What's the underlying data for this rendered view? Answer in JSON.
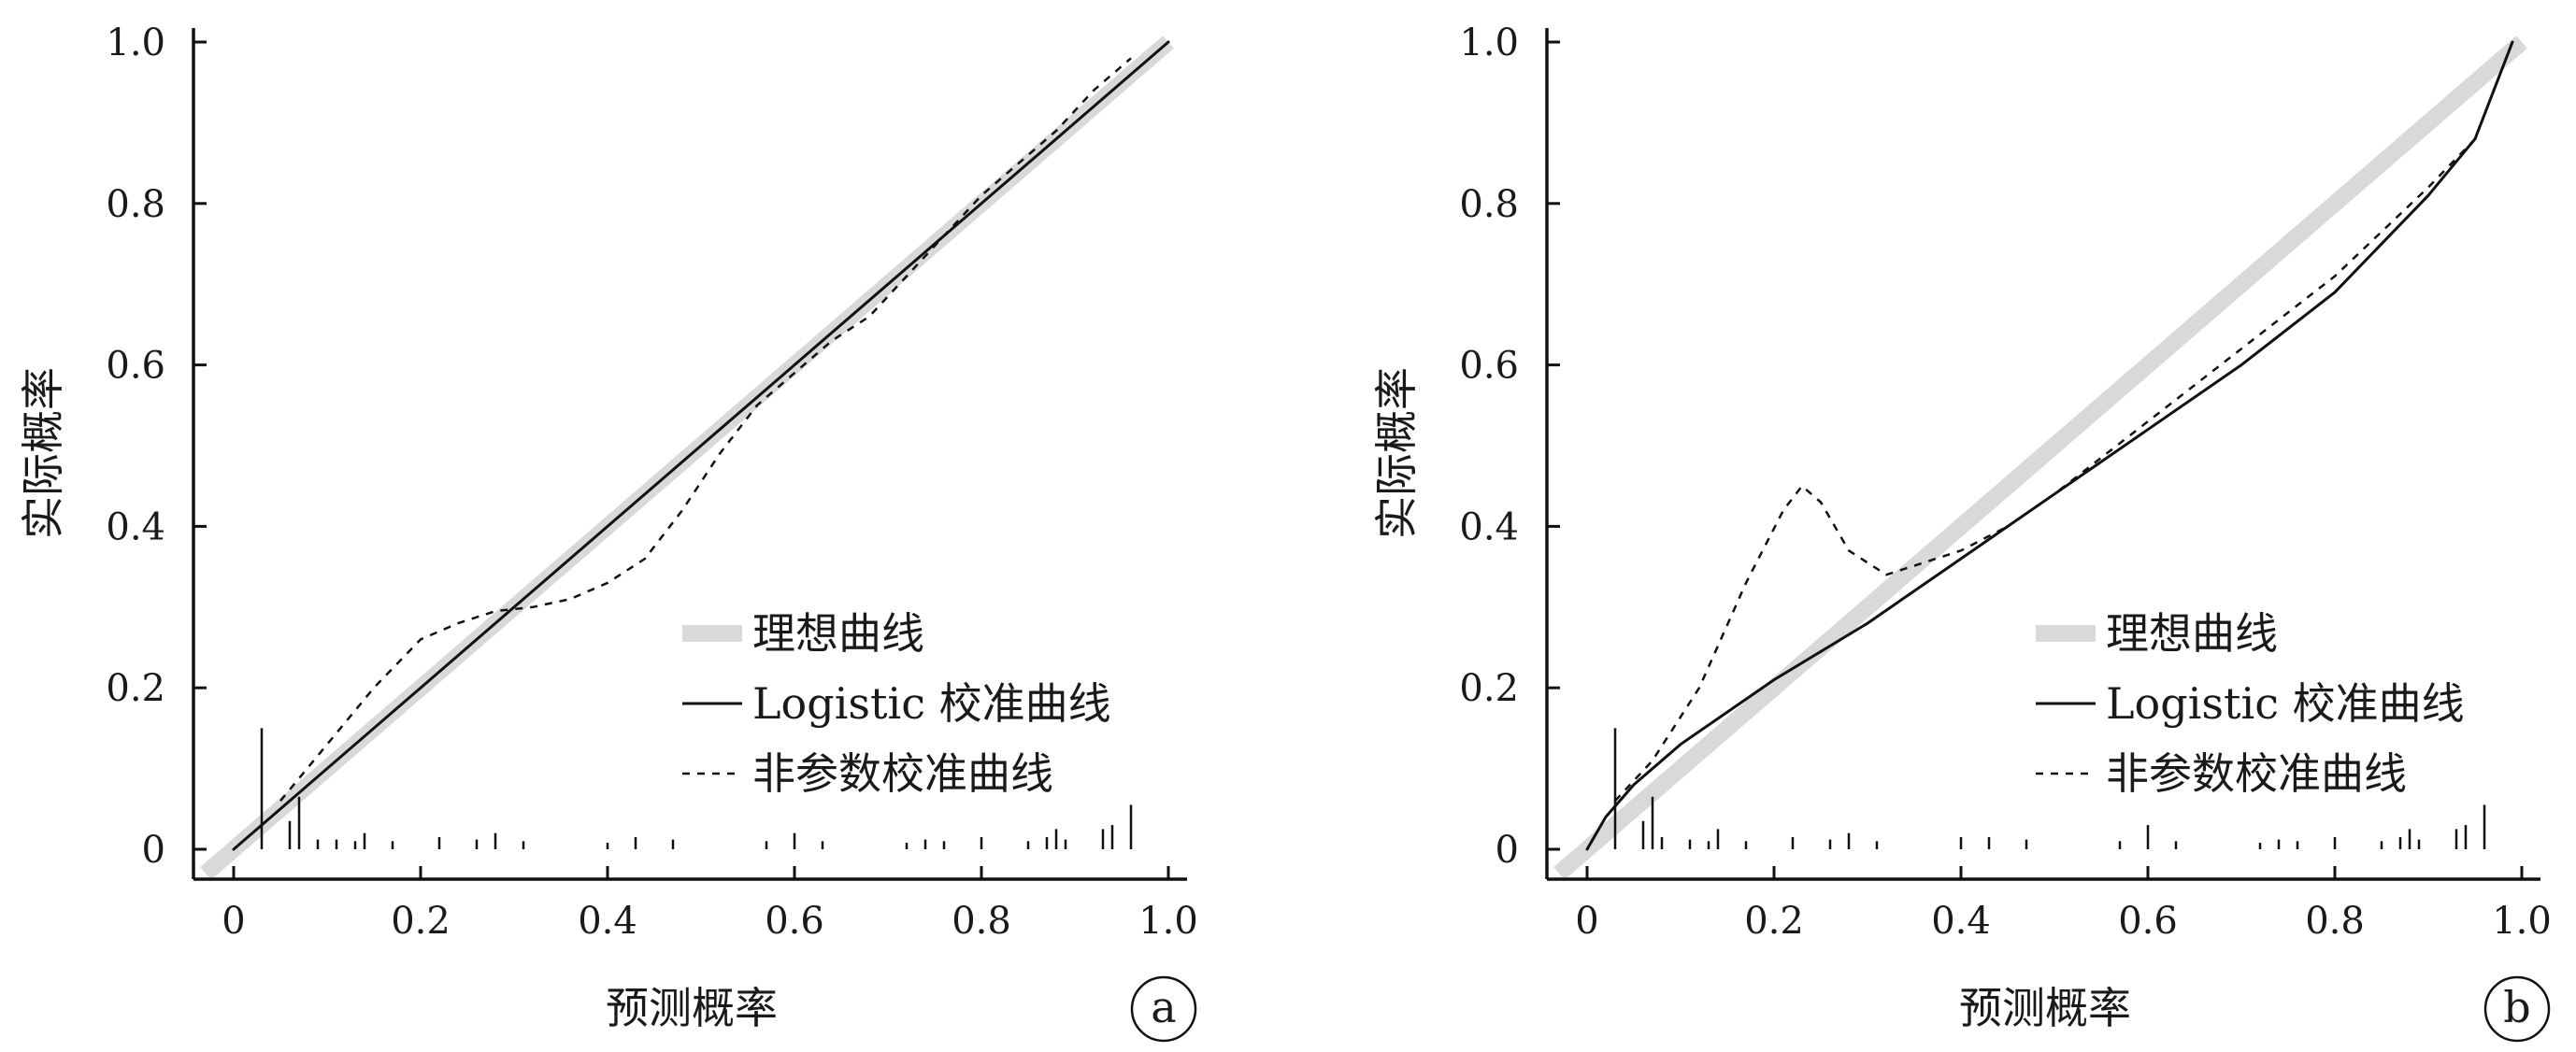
{
  "chart_data": [
    {
      "type": "line",
      "panel_label": "a",
      "xlabel": "预测概率",
      "ylabel": "实际概率",
      "xlim": [
        0,
        1.0
      ],
      "ylim": [
        0,
        1.0
      ],
      "xticks": [
        "0",
        "0.2",
        "0.4",
        "0.6",
        "0.8",
        "1.0"
      ],
      "yticks": [
        "0",
        "0.2",
        "0.4",
        "0.6",
        "0.8",
        "1.0"
      ],
      "grid": false,
      "legend_position": "bottom-right",
      "series": [
        {
          "name": "理想曲线",
          "style": "thick-gray",
          "color": "#d9d9d9",
          "x": [
            -0.03,
            1.0
          ],
          "y": [
            -0.03,
            1.0
          ]
        },
        {
          "name": "Logistic 校准曲线",
          "style": "solid",
          "color": "#111111",
          "x": [
            0.0,
            0.2,
            0.4,
            0.6,
            0.8,
            1.0
          ],
          "y": [
            0.0,
            0.2,
            0.4,
            0.6,
            0.8,
            1.0
          ]
        },
        {
          "name": "非参数校准曲线",
          "style": "dashed",
          "color": "#111111",
          "x": [
            0.05,
            0.1,
            0.15,
            0.2,
            0.24,
            0.28,
            0.32,
            0.36,
            0.4,
            0.44,
            0.48,
            0.52,
            0.56,
            0.6,
            0.64,
            0.68,
            0.72,
            0.76,
            0.8,
            0.84,
            0.88,
            0.92,
            0.96
          ],
          "y": [
            0.06,
            0.13,
            0.2,
            0.26,
            0.28,
            0.295,
            0.3,
            0.31,
            0.33,
            0.36,
            0.42,
            0.49,
            0.55,
            0.59,
            0.63,
            0.66,
            0.71,
            0.76,
            0.81,
            0.85,
            0.89,
            0.94,
            0.98
          ]
        }
      ],
      "rug": {
        "x": [
          0.03,
          0.06,
          0.07,
          0.09,
          0.11,
          0.13,
          0.14,
          0.17,
          0.22,
          0.26,
          0.28,
          0.31,
          0.4,
          0.43,
          0.47,
          0.57,
          0.6,
          0.63,
          0.72,
          0.74,
          0.76,
          0.8,
          0.85,
          0.87,
          0.88,
          0.89,
          0.93,
          0.94,
          0.96
        ],
        "h": [
          0.15,
          0.035,
          0.065,
          0.012,
          0.012,
          0.01,
          0.02,
          0.01,
          0.015,
          0.012,
          0.02,
          0.01,
          0.008,
          0.015,
          0.012,
          0.01,
          0.02,
          0.01,
          0.008,
          0.012,
          0.01,
          0.015,
          0.01,
          0.015,
          0.025,
          0.012,
          0.025,
          0.03,
          0.055
        ]
      }
    },
    {
      "type": "line",
      "panel_label": "b",
      "xlabel": "预测概率",
      "ylabel": "实际概率",
      "xlim": [
        0,
        1.0
      ],
      "ylim": [
        0,
        1.0
      ],
      "xticks": [
        "0",
        "0.2",
        "0.4",
        "0.6",
        "0.8",
        "1.0"
      ],
      "yticks": [
        "0",
        "0.2",
        "0.4",
        "0.6",
        "0.8",
        "1.0"
      ],
      "grid": false,
      "legend_position": "bottom-right",
      "series": [
        {
          "name": "理想曲线",
          "style": "thick-gray",
          "color": "#d9d9d9",
          "x": [
            -0.03,
            1.0
          ],
          "y": [
            -0.03,
            1.0
          ]
        },
        {
          "name": "Logistic 校准曲线",
          "style": "solid",
          "color": "#111111",
          "x": [
            0.0,
            0.02,
            0.05,
            0.1,
            0.2,
            0.3,
            0.4,
            0.5,
            0.6,
            0.7,
            0.8,
            0.9,
            0.95,
            0.99
          ],
          "y": [
            0.0,
            0.04,
            0.08,
            0.13,
            0.21,
            0.28,
            0.36,
            0.44,
            0.52,
            0.6,
            0.69,
            0.81,
            0.88,
            1.0
          ]
        },
        {
          "name": "非参数校准曲线",
          "style": "dashed",
          "color": "#111111",
          "x": [
            0.03,
            0.07,
            0.12,
            0.17,
            0.21,
            0.23,
            0.25,
            0.28,
            0.32,
            0.36,
            0.4,
            0.45,
            0.5,
            0.6,
            0.7,
            0.8,
            0.9,
            0.95
          ],
          "y": [
            0.06,
            0.11,
            0.2,
            0.33,
            0.42,
            0.45,
            0.43,
            0.37,
            0.34,
            0.355,
            0.37,
            0.4,
            0.44,
            0.53,
            0.62,
            0.71,
            0.82,
            0.88
          ]
        }
      ],
      "rug": {
        "x": [
          0.03,
          0.06,
          0.07,
          0.08,
          0.11,
          0.13,
          0.14,
          0.17,
          0.22,
          0.26,
          0.28,
          0.31,
          0.4,
          0.43,
          0.47,
          0.57,
          0.6,
          0.63,
          0.72,
          0.74,
          0.76,
          0.8,
          0.85,
          0.87,
          0.88,
          0.89,
          0.93,
          0.94,
          0.96
        ],
        "h": [
          0.15,
          0.035,
          0.065,
          0.015,
          0.012,
          0.01,
          0.025,
          0.01,
          0.015,
          0.012,
          0.02,
          0.01,
          0.015,
          0.015,
          0.012,
          0.01,
          0.03,
          0.01,
          0.008,
          0.012,
          0.01,
          0.015,
          0.01,
          0.015,
          0.025,
          0.012,
          0.025,
          0.03,
          0.055
        ]
      }
    }
  ]
}
